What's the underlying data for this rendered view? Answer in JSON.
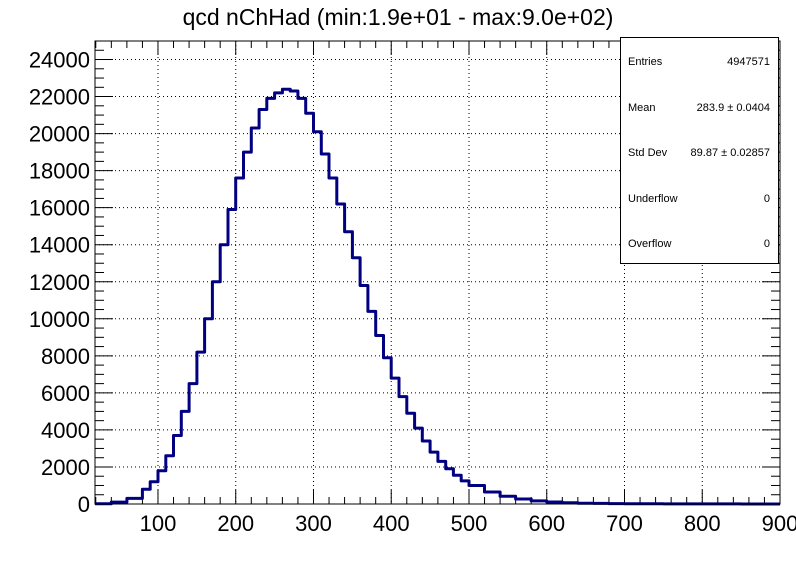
{
  "chart_data": {
    "type": "line",
    "title": "qcd nChHad (min:1.9e+01 - max:9.0e+02)",
    "xlabel": "",
    "ylabel": "",
    "xlim": [
      19,
      900
    ],
    "ylim": [
      0,
      25000
    ],
    "x_ticks": [
      "100",
      "200",
      "300",
      "400",
      "500",
      "600",
      "700",
      "800",
      "900"
    ],
    "y_ticks": [
      "0",
      "2000",
      "4000",
      "6000",
      "8000",
      "10000",
      "12000",
      "14000",
      "16000",
      "18000",
      "20000",
      "22000",
      "24000"
    ],
    "grid": true,
    "series": [
      {
        "color": "#000080",
        "x": [
          19,
          40,
          60,
          80,
          90,
          100,
          110,
          120,
          130,
          140,
          150,
          160,
          170,
          180,
          190,
          200,
          210,
          220,
          230,
          240,
          250,
          260,
          270,
          280,
          290,
          300,
          310,
          320,
          330,
          340,
          350,
          360,
          370,
          380,
          390,
          400,
          410,
          420,
          430,
          440,
          450,
          460,
          470,
          480,
          490,
          500,
          520,
          540,
          560,
          580,
          600,
          620,
          640,
          660,
          680,
          700,
          750,
          800,
          850,
          900
        ],
        "y": [
          10,
          100,
          300,
          800,
          1200,
          1800,
          2600,
          3700,
          5000,
          6500,
          8200,
          10000,
          12000,
          14000,
          15900,
          17600,
          19000,
          20300,
          21300,
          21900,
          22200,
          22400,
          22300,
          21900,
          21100,
          20100,
          18900,
          17600,
          16200,
          14700,
          13300,
          11800,
          10400,
          9100,
          7900,
          6800,
          5800,
          4900,
          4100,
          3400,
          2800,
          2300,
          1900,
          1550,
          1250,
          1000,
          650,
          420,
          270,
          170,
          110,
          70,
          45,
          30,
          20,
          15,
          8,
          4,
          2,
          1
        ]
      }
    ],
    "legend": "none"
  },
  "stats": {
    "rows": [
      {
        "label": "Entries",
        "value": "4947571"
      },
      {
        "label": "Mean",
        "value": "283.9 ± 0.0404"
      },
      {
        "label": "Std Dev",
        "value": "89.87 ± 0.02857"
      },
      {
        "label": "Underflow",
        "value": "0"
      },
      {
        "label": "Overflow",
        "value": "0"
      }
    ]
  }
}
